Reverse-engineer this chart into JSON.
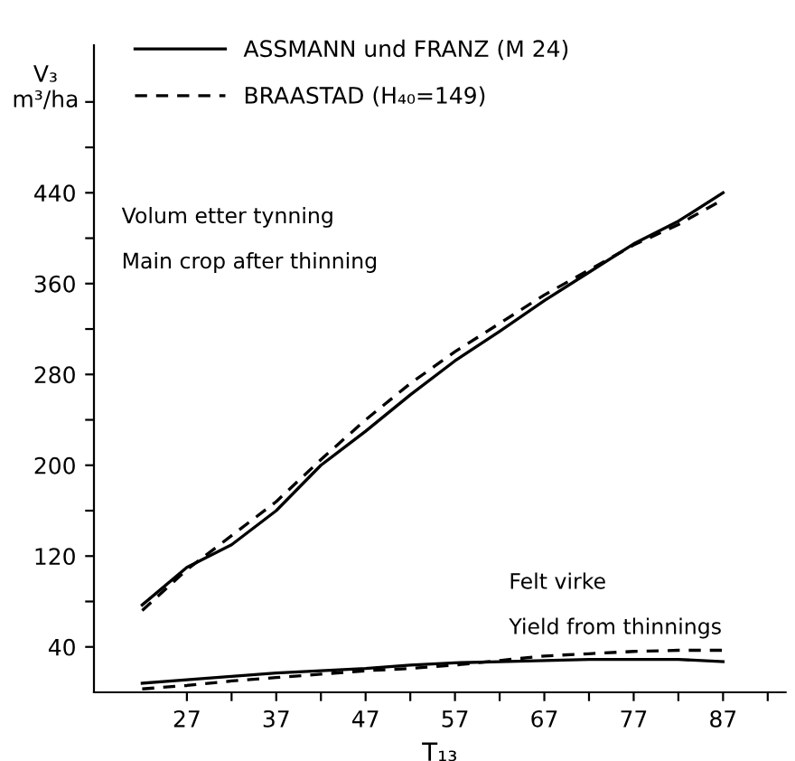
{
  "chart_data": {
    "type": "line",
    "xlabel": "T₁₃",
    "ylabel": "V₃\nm³/ha",
    "xlim": [
      16.6,
      94
    ],
    "ylim": [
      0,
      570
    ],
    "xticks": [
      27,
      {
        "value": 32,
        "label": null
      },
      37,
      {
        "value": 42,
        "label": null
      },
      47,
      {
        "value": 52,
        "label": null
      },
      57,
      {
        "value": 62,
        "label": null
      },
      67,
      {
        "value": 72,
        "label": null
      },
      77,
      {
        "value": 82,
        "label": null
      },
      87,
      {
        "value": 92,
        "label": null
      }
    ],
    "yticks": [
      40,
      {
        "value": 80,
        "label": null
      },
      120,
      {
        "value": 160,
        "label": null
      },
      200,
      {
        "value": 240,
        "label": null
      },
      280,
      {
        "value": 320,
        "label": null
      },
      360,
      {
        "value": 400,
        "label": null
      },
      440,
      {
        "value": 480,
        "label": null
      },
      {
        "value": 520,
        "label": null
      }
    ],
    "x": [
      22,
      27,
      32,
      37,
      42,
      47,
      52,
      57,
      62,
      67,
      72,
      77,
      82,
      87
    ],
    "series": [
      {
        "name": "ASSMANN und FRANZ (M 24)",
        "color": "#000000",
        "line_style": "solid",
        "values": [
          77,
          110,
          130,
          160,
          200,
          230,
          262,
          292,
          318,
          345,
          370,
          395,
          415,
          440
        ]
      },
      {
        "name": "BRAASTAD (H₄₀=149)",
        "color": "#000000",
        "line_style": "dashed",
        "values": [
          72,
          108,
          138,
          168,
          205,
          240,
          272,
          300,
          325,
          350,
          372,
          394,
          412,
          434
        ]
      },
      {
        "color": "#000000",
        "line_style": "solid",
        "values": [
          8,
          11,
          14,
          17,
          19,
          21,
          24,
          26,
          27,
          28,
          29,
          29,
          29,
          27
        ]
      },
      {
        "color": "#000000",
        "line_style": "dashed",
        "values": [
          3,
          6,
          10,
          13,
          16,
          19,
          21,
          24,
          28,
          32,
          34,
          36,
          37,
          37
        ]
      }
    ],
    "annotations": [
      "Volum etter tynning",
      "Main crop after thinning",
      "Felt virke",
      "Yield from thinnings"
    ],
    "legend": "top left",
    "grid": false,
    "marker": "none"
  }
}
